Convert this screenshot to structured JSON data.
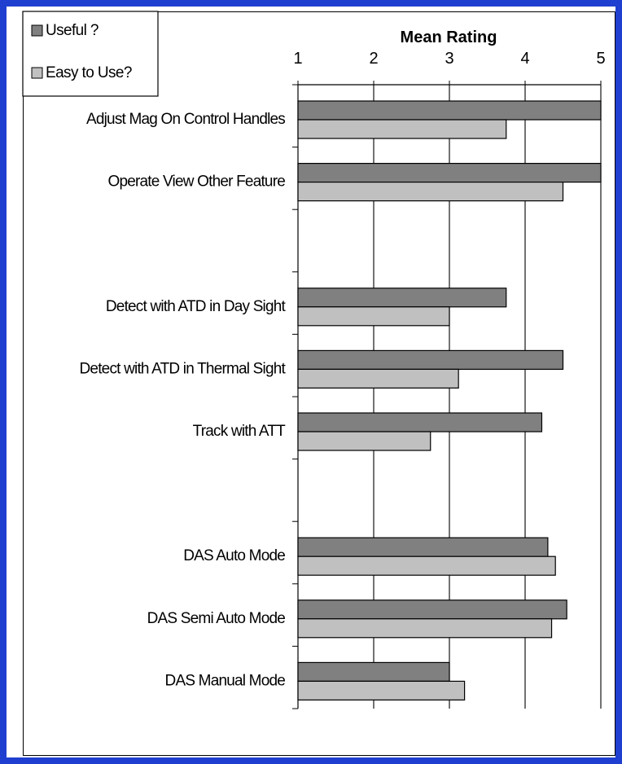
{
  "chart_data": {
    "type": "bar",
    "orientation": "horizontal",
    "title": "Mean Rating",
    "xlim": [
      1,
      5
    ],
    "xticks": [
      "1",
      "2",
      "3",
      "4",
      "5"
    ],
    "grid": true,
    "legend_position": "top-left",
    "categories": [
      "Adjust Mag On Control Handles",
      "Operate View Other Feature",
      "",
      "Detect with ATD in Day Sight",
      "Detect with ATD in Thermal Sight",
      "Track with ATT",
      "",
      "DAS Auto Mode",
      "DAS Semi Auto Mode",
      "DAS Manual Mode"
    ],
    "series": [
      {
        "name": "Useful ?",
        "color": "#808080",
        "values": [
          5.0,
          5.0,
          null,
          3.75,
          4.5,
          4.22,
          null,
          4.3,
          4.55,
          3.0
        ]
      },
      {
        "name": "Easy to Use?",
        "color": "#c0c0c0",
        "values": [
          3.75,
          4.5,
          null,
          3.0,
          3.12,
          2.75,
          null,
          4.4,
          4.35,
          3.2
        ]
      }
    ]
  }
}
